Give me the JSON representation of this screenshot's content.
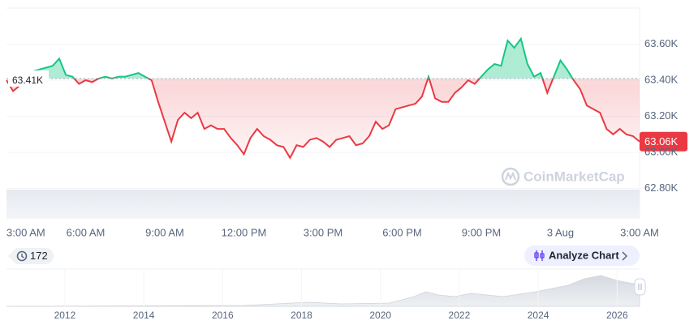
{
  "chart_data": {
    "type": "line",
    "x": [
      0,
      0.25,
      0.5,
      0.75,
      1,
      1.25,
      1.5,
      1.75,
      2,
      2.25,
      2.5,
      2.75,
      3,
      3.25,
      3.5,
      3.75,
      4,
      4.25,
      4.5,
      4.75,
      5,
      5.25,
      5.5,
      5.75,
      6,
      6.25,
      6.5,
      6.75,
      7,
      7.25,
      7.5,
      7.75,
      8,
      8.25,
      8.5,
      8.75,
      9,
      9.25,
      9.5,
      9.75,
      10,
      10.25,
      10.5,
      10.75,
      11,
      11.25,
      11.5,
      11.75,
      12,
      12.25,
      12.5,
      12.75,
      13,
      13.25,
      13.5,
      13.75,
      14,
      14.25,
      14.5,
      14.75,
      15,
      15.25,
      15.5,
      15.75,
      16,
      16.25,
      16.5,
      16.75,
      17,
      17.25,
      17.5,
      17.75,
      18,
      18.25,
      18.5,
      18.75,
      19,
      19.25,
      19.5,
      19.75,
      20,
      20.25,
      20.5,
      20.75,
      21,
      21.25,
      21.5,
      21.75,
      22,
      22.25,
      22.5,
      22.75,
      23,
      23.25,
      23.5,
      23.75,
      24
    ],
    "values": [
      63.4,
      63.34,
      63.37,
      63.42,
      63.45,
      63.46,
      63.47,
      63.48,
      63.52,
      63.43,
      63.42,
      63.38,
      63.4,
      63.39,
      63.41,
      63.42,
      63.41,
      63.42,
      63.42,
      63.43,
      63.44,
      63.42,
      63.4,
      63.28,
      63.17,
      63.06,
      63.18,
      63.22,
      63.19,
      63.22,
      63.13,
      63.15,
      63.13,
      63.13,
      63.08,
      63.04,
      62.99,
      63.08,
      63.13,
      63.09,
      63.07,
      63.04,
      63.03,
      62.97,
      63.04,
      63.03,
      63.07,
      63.08,
      63.06,
      63.03,
      63.07,
      63.08,
      63.09,
      63.04,
      63.05,
      63.09,
      63.17,
      63.13,
      63.15,
      63.24,
      63.25,
      63.26,
      63.27,
      63.31,
      63.42,
      63.3,
      63.28,
      63.28,
      63.33,
      63.36,
      63.4,
      63.38,
      63.42,
      63.46,
      63.49,
      63.48,
      63.62,
      63.58,
      63.63,
      63.49,
      63.42,
      63.44,
      63.33,
      63.42,
      63.51,
      63.46,
      63.4,
      63.35,
      63.26,
      63.24,
      63.22,
      63.13,
      63.1,
      63.13,
      63.1,
      63.09,
      63.06
    ],
    "up_color": "#16c784",
    "down_color": "#ea3943",
    "baseline": {
      "value": 63.41,
      "label": "63.41K"
    },
    "last_price": {
      "value": 63.06,
      "label": "63.06K"
    },
    "xlim": [
      0,
      24
    ],
    "xticks": [
      {
        "value": 0,
        "label": "3:00 AM"
      },
      {
        "value": 3,
        "label": "6:00 AM"
      },
      {
        "value": 6,
        "label": "9:00 AM"
      },
      {
        "value": 9,
        "label": "12:00 PM"
      },
      {
        "value": 12,
        "label": "3:00 PM"
      },
      {
        "value": 15,
        "label": "6:00 PM"
      },
      {
        "value": 18,
        "label": "9:00 PM"
      },
      {
        "value": 21,
        "label": "3 Aug"
      },
      {
        "value": 24,
        "label": "3:00 AM"
      }
    ],
    "ylim": [
      62.632,
      63.8
    ],
    "yticks": [
      {
        "value": 62.8,
        "label": "62.80K"
      },
      {
        "value": 63.0,
        "label": "63.00K"
      },
      {
        "value": 63.2,
        "label": "63.20K"
      },
      {
        "value": 63.4,
        "label": "63.40K"
      },
      {
        "value": 63.6,
        "label": "63.60K"
      }
    ],
    "watermark": "CoinMarketCap"
  },
  "controls": {
    "history_count": 172,
    "analyze_button": "Analyze Chart"
  },
  "navigator": {
    "xlim": [
      2010.52,
      2026.57
    ],
    "xticks": [
      2012,
      2014,
      2016,
      2018,
      2020,
      2022,
      2024,
      2026
    ]
  }
}
